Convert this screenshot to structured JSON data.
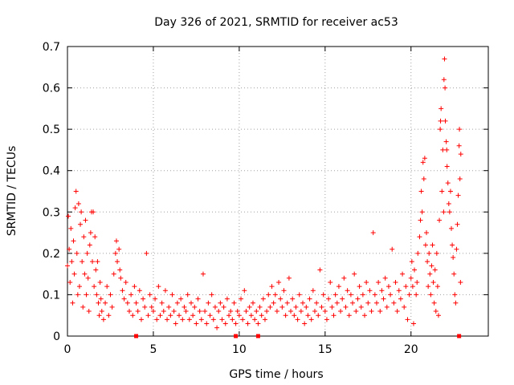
{
  "chart_data": {
    "type": "scatter",
    "title": "Day 326 of 2021, SRMTID for receiver ac53",
    "xlabel": "GPS time / hours",
    "ylabel": "SRMTID / TECUs",
    "xlim": [
      0,
      24.5
    ],
    "ylim": [
      0,
      0.7
    ],
    "xticks": [
      0,
      5,
      10,
      15,
      20
    ],
    "yticks": [
      0,
      0.1,
      0.2,
      0.3,
      0.4,
      0.5,
      0.6,
      0.7
    ],
    "grid": true,
    "marker": "+",
    "color": "#ff0000",
    "zero_markers_x": [
      4.0,
      9.8,
      11.1,
      22.8
    ],
    "series": [
      {
        "name": "SRMTID",
        "points": [
          [
            0.0,
            0.17
          ],
          [
            0.05,
            0.29
          ],
          [
            0.1,
            0.21
          ],
          [
            0.15,
            0.13
          ],
          [
            0.2,
            0.26
          ],
          [
            0.25,
            0.18
          ],
          [
            0.3,
            0.08
          ],
          [
            0.35,
            0.23
          ],
          [
            0.4,
            0.15
          ],
          [
            0.45,
            0.31
          ],
          [
            0.5,
            0.35
          ],
          [
            0.55,
            0.2
          ],
          [
            0.6,
            0.1
          ],
          [
            0.65,
            0.32
          ],
          [
            0.7,
            0.12
          ],
          [
            0.75,
            0.27
          ],
          [
            0.8,
            0.3
          ],
          [
            0.85,
            0.18
          ],
          [
            0.9,
            0.07
          ],
          [
            0.95,
            0.24
          ],
          [
            1.0,
            0.15
          ],
          [
            1.05,
            0.28
          ],
          [
            1.1,
            0.1
          ],
          [
            1.15,
            0.2
          ],
          [
            1.2,
            0.14
          ],
          [
            1.25,
            0.06
          ],
          [
            1.3,
            0.22
          ],
          [
            1.35,
            0.25
          ],
          [
            1.4,
            0.3
          ],
          [
            1.45,
            0.18
          ],
          [
            1.5,
            0.3
          ],
          [
            1.55,
            0.12
          ],
          [
            1.6,
            0.24
          ],
          [
            1.65,
            0.16
          ],
          [
            1.7,
            0.1
          ],
          [
            1.75,
            0.18
          ],
          [
            1.8,
            0.08
          ],
          [
            1.85,
            0.05
          ],
          [
            1.9,
            0.13
          ],
          [
            1.95,
            0.09
          ],
          [
            2.0,
            0.06
          ],
          [
            2.1,
            0.04
          ],
          [
            2.2,
            0.08
          ],
          [
            2.3,
            0.12
          ],
          [
            2.4,
            0.05
          ],
          [
            2.5,
            0.1
          ],
          [
            2.6,
            0.07
          ],
          [
            2.7,
            0.15
          ],
          [
            2.8,
            0.2
          ],
          [
            2.85,
            0.23
          ],
          [
            2.9,
            0.18
          ],
          [
            3.0,
            0.21
          ],
          [
            3.05,
            0.16
          ],
          [
            3.1,
            0.14
          ],
          [
            3.2,
            0.11
          ],
          [
            3.3,
            0.09
          ],
          [
            3.4,
            0.13
          ],
          [
            3.5,
            0.08
          ],
          [
            3.6,
            0.06
          ],
          [
            3.7,
            0.1
          ],
          [
            3.8,
            0.05
          ],
          [
            3.9,
            0.12
          ],
          [
            4.0,
            0.08
          ],
          [
            4.1,
            0.06
          ],
          [
            4.2,
            0.11
          ],
          [
            4.3,
            0.04
          ],
          [
            4.4,
            0.09
          ],
          [
            4.5,
            0.07
          ],
          [
            4.6,
            0.2
          ],
          [
            4.7,
            0.05
          ],
          [
            4.8,
            0.1
          ],
          [
            4.9,
            0.07
          ],
          [
            5.0,
            0.06
          ],
          [
            5.1,
            0.09
          ],
          [
            5.2,
            0.04
          ],
          [
            5.3,
            0.12
          ],
          [
            5.4,
            0.05
          ],
          [
            5.5,
            0.08
          ],
          [
            5.6,
            0.06
          ],
          [
            5.7,
            0.11
          ],
          [
            5.8,
            0.04
          ],
          [
            5.9,
            0.07
          ],
          [
            6.0,
            0.05
          ],
          [
            6.1,
            0.1
          ],
          [
            6.2,
            0.06
          ],
          [
            6.3,
            0.03
          ],
          [
            6.4,
            0.08
          ],
          [
            6.5,
            0.05
          ],
          [
            6.6,
            0.09
          ],
          [
            6.7,
            0.04
          ],
          [
            6.8,
            0.07
          ],
          [
            6.9,
            0.06
          ],
          [
            7.0,
            0.1
          ],
          [
            7.1,
            0.04
          ],
          [
            7.2,
            0.08
          ],
          [
            7.3,
            0.05
          ],
          [
            7.4,
            0.07
          ],
          [
            7.5,
            0.03
          ],
          [
            7.6,
            0.09
          ],
          [
            7.7,
            0.06
          ],
          [
            7.8,
            0.04
          ],
          [
            7.9,
            0.15
          ],
          [
            8.0,
            0.06
          ],
          [
            8.1,
            0.03
          ],
          [
            8.2,
            0.08
          ],
          [
            8.3,
            0.05
          ],
          [
            8.4,
            0.1
          ],
          [
            8.5,
            0.04
          ],
          [
            8.6,
            0.07
          ],
          [
            8.7,
            0.02
          ],
          [
            8.8,
            0.06
          ],
          [
            8.9,
            0.08
          ],
          [
            9.0,
            0.04
          ],
          [
            9.1,
            0.07
          ],
          [
            9.2,
            0.03
          ],
          [
            9.3,
            0.09
          ],
          [
            9.4,
            0.05
          ],
          [
            9.5,
            0.06
          ],
          [
            9.6,
            0.04
          ],
          [
            9.7,
            0.08
          ],
          [
            9.8,
            0.03
          ],
          [
            9.9,
            0.06
          ],
          [
            10.0,
            0.05
          ],
          [
            10.1,
            0.09
          ],
          [
            10.2,
            0.04
          ],
          [
            10.3,
            0.11
          ],
          [
            10.4,
            0.06
          ],
          [
            10.5,
            0.03
          ],
          [
            10.6,
            0.07
          ],
          [
            10.7,
            0.05
          ],
          [
            10.8,
            0.08
          ],
          [
            10.9,
            0.04
          ],
          [
            11.0,
            0.06
          ],
          [
            11.1,
            0.03
          ],
          [
            11.2,
            0.07
          ],
          [
            11.3,
            0.05
          ],
          [
            11.4,
            0.09
          ],
          [
            11.5,
            0.04
          ],
          [
            11.6,
            0.06
          ],
          [
            11.7,
            0.1
          ],
          [
            11.8,
            0.07
          ],
          [
            11.9,
            0.12
          ],
          [
            12.0,
            0.08
          ],
          [
            12.1,
            0.1
          ],
          [
            12.2,
            0.06
          ],
          [
            12.3,
            0.13
          ],
          [
            12.4,
            0.09
          ],
          [
            12.5,
            0.07
          ],
          [
            12.6,
            0.11
          ],
          [
            12.7,
            0.05
          ],
          [
            12.8,
            0.08
          ],
          [
            12.9,
            0.14
          ],
          [
            13.0,
            0.06
          ],
          [
            13.1,
            0.09
          ],
          [
            13.2,
            0.05
          ],
          [
            13.3,
            0.07
          ],
          [
            13.4,
            0.04
          ],
          [
            13.5,
            0.1
          ],
          [
            13.6,
            0.06
          ],
          [
            13.7,
            0.08
          ],
          [
            13.8,
            0.03
          ],
          [
            13.9,
            0.07
          ],
          [
            14.0,
            0.05
          ],
          [
            14.1,
            0.09
          ],
          [
            14.2,
            0.04
          ],
          [
            14.3,
            0.11
          ],
          [
            14.4,
            0.06
          ],
          [
            14.5,
            0.08
          ],
          [
            14.6,
            0.05
          ],
          [
            14.7,
            0.16
          ],
          [
            14.8,
            0.07
          ],
          [
            14.9,
            0.1
          ],
          [
            15.0,
            0.06
          ],
          [
            15.1,
            0.04
          ],
          [
            15.2,
            0.09
          ],
          [
            15.3,
            0.13
          ],
          [
            15.4,
            0.07
          ],
          [
            15.5,
            0.05
          ],
          [
            15.6,
            0.1
          ],
          [
            15.7,
            0.08
          ],
          [
            15.8,
            0.12
          ],
          [
            15.9,
            0.06
          ],
          [
            16.0,
            0.09
          ],
          [
            16.1,
            0.14
          ],
          [
            16.2,
            0.07
          ],
          [
            16.3,
            0.11
          ],
          [
            16.4,
            0.05
          ],
          [
            16.5,
            0.1
          ],
          [
            16.6,
            0.08
          ],
          [
            16.7,
            0.15
          ],
          [
            16.8,
            0.06
          ],
          [
            16.9,
            0.09
          ],
          [
            17.0,
            0.12
          ],
          [
            17.1,
            0.07
          ],
          [
            17.2,
            0.1
          ],
          [
            17.3,
            0.05
          ],
          [
            17.4,
            0.13
          ],
          [
            17.5,
            0.08
          ],
          [
            17.6,
            0.11
          ],
          [
            17.7,
            0.06
          ],
          [
            17.8,
            0.25
          ],
          [
            17.9,
            0.1
          ],
          [
            18.0,
            0.08
          ],
          [
            18.1,
            0.13
          ],
          [
            18.2,
            0.06
          ],
          [
            18.3,
            0.11
          ],
          [
            18.4,
            0.09
          ],
          [
            18.5,
            0.14
          ],
          [
            18.6,
            0.07
          ],
          [
            18.7,
            0.12
          ],
          [
            18.8,
            0.1
          ],
          [
            18.9,
            0.21
          ],
          [
            19.0,
            0.08
          ],
          [
            19.1,
            0.13
          ],
          [
            19.2,
            0.06
          ],
          [
            19.3,
            0.11
          ],
          [
            19.4,
            0.09
          ],
          [
            19.5,
            0.15
          ],
          [
            19.6,
            0.07
          ],
          [
            19.7,
            0.12
          ],
          [
            19.8,
            0.04
          ],
          [
            19.9,
            0.1
          ],
          [
            20.0,
            0.14
          ],
          [
            20.05,
            0.18
          ],
          [
            20.1,
            0.12
          ],
          [
            20.15,
            0.03
          ],
          [
            20.2,
            0.16
          ],
          [
            20.3,
            0.1
          ],
          [
            20.35,
            0.13
          ],
          [
            20.4,
            0.2
          ],
          [
            20.5,
            0.24
          ],
          [
            20.55,
            0.28
          ],
          [
            20.6,
            0.35
          ],
          [
            20.65,
            0.3
          ],
          [
            20.7,
            0.42
          ],
          [
            20.75,
            0.38
          ],
          [
            20.8,
            0.43
          ],
          [
            20.85,
            0.22
          ],
          [
            20.9,
            0.25
          ],
          [
            20.95,
            0.18
          ],
          [
            21.0,
            0.12
          ],
          [
            21.05,
            0.2
          ],
          [
            21.1,
            0.15
          ],
          [
            21.15,
            0.1
          ],
          [
            21.2,
            0.17
          ],
          [
            21.25,
            0.22
          ],
          [
            21.3,
            0.13
          ],
          [
            21.35,
            0.08
          ],
          [
            21.4,
            0.16
          ],
          [
            21.45,
            0.06
          ],
          [
            21.5,
            0.2
          ],
          [
            21.55,
            0.12
          ],
          [
            21.6,
            0.05
          ],
          [
            21.65,
            0.28
          ],
          [
            21.7,
            0.5
          ],
          [
            21.72,
            0.52
          ],
          [
            21.75,
            0.55
          ],
          [
            21.8,
            0.35
          ],
          [
            21.85,
            0.45
          ],
          [
            21.9,
            0.3
          ],
          [
            21.92,
            0.62
          ],
          [
            21.95,
            0.67
          ],
          [
            21.98,
            0.6
          ],
          [
            22.0,
            0.52
          ],
          [
            22.05,
            0.47
          ],
          [
            22.08,
            0.45
          ],
          [
            22.1,
            0.41
          ],
          [
            22.15,
            0.37
          ],
          [
            22.2,
            0.32
          ],
          [
            22.25,
            0.3
          ],
          [
            22.3,
            0.35
          ],
          [
            22.35,
            0.26
          ],
          [
            22.4,
            0.22
          ],
          [
            22.45,
            0.19
          ],
          [
            22.5,
            0.15
          ],
          [
            22.55,
            0.1
          ],
          [
            22.6,
            0.08
          ],
          [
            22.65,
            0.21
          ],
          [
            22.7,
            0.27
          ],
          [
            22.75,
            0.34
          ],
          [
            22.8,
            0.46
          ],
          [
            22.82,
            0.5
          ],
          [
            22.85,
            0.38
          ],
          [
            22.88,
            0.13
          ],
          [
            22.9,
            0.44
          ]
        ]
      }
    ]
  }
}
